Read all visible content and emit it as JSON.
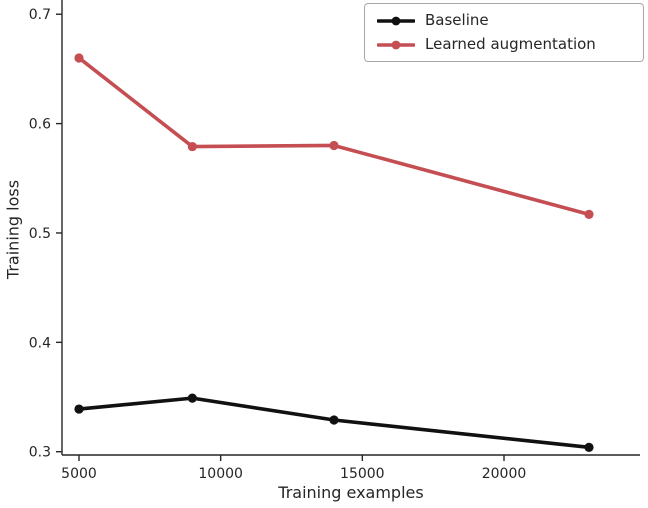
{
  "chart_data": {
    "type": "line",
    "title": "",
    "xlabel": "Training examples",
    "ylabel": "Training loss",
    "x": [
      5000,
      9000,
      14000,
      23000
    ],
    "series": [
      {
        "name": "Baseline",
        "color": "#111111",
        "values": [
          0.339,
          0.349,
          0.329,
          0.304
        ]
      },
      {
        "name": "Learned augmentation",
        "color": "#c44e52",
        "values": [
          0.66,
          0.579,
          0.58,
          0.517
        ]
      }
    ],
    "xlim": [
      4400,
      24800
    ],
    "ylim": [
      0.297,
      0.713
    ],
    "xticks": [
      5000,
      10000,
      15000,
      20000
    ],
    "xtick_labels": [
      "5000",
      "10000",
      "15000",
      "20000"
    ],
    "yticks": [
      0.3,
      0.4,
      0.5,
      0.6,
      0.7
    ],
    "ytick_labels": [
      "0.3",
      "0.4",
      "0.5",
      "0.6",
      "0.7"
    ],
    "grid": false,
    "legend_position": "upper right",
    "axis_color": "#262626",
    "legend_entries": [
      "Baseline",
      "Learned augmentation"
    ]
  }
}
